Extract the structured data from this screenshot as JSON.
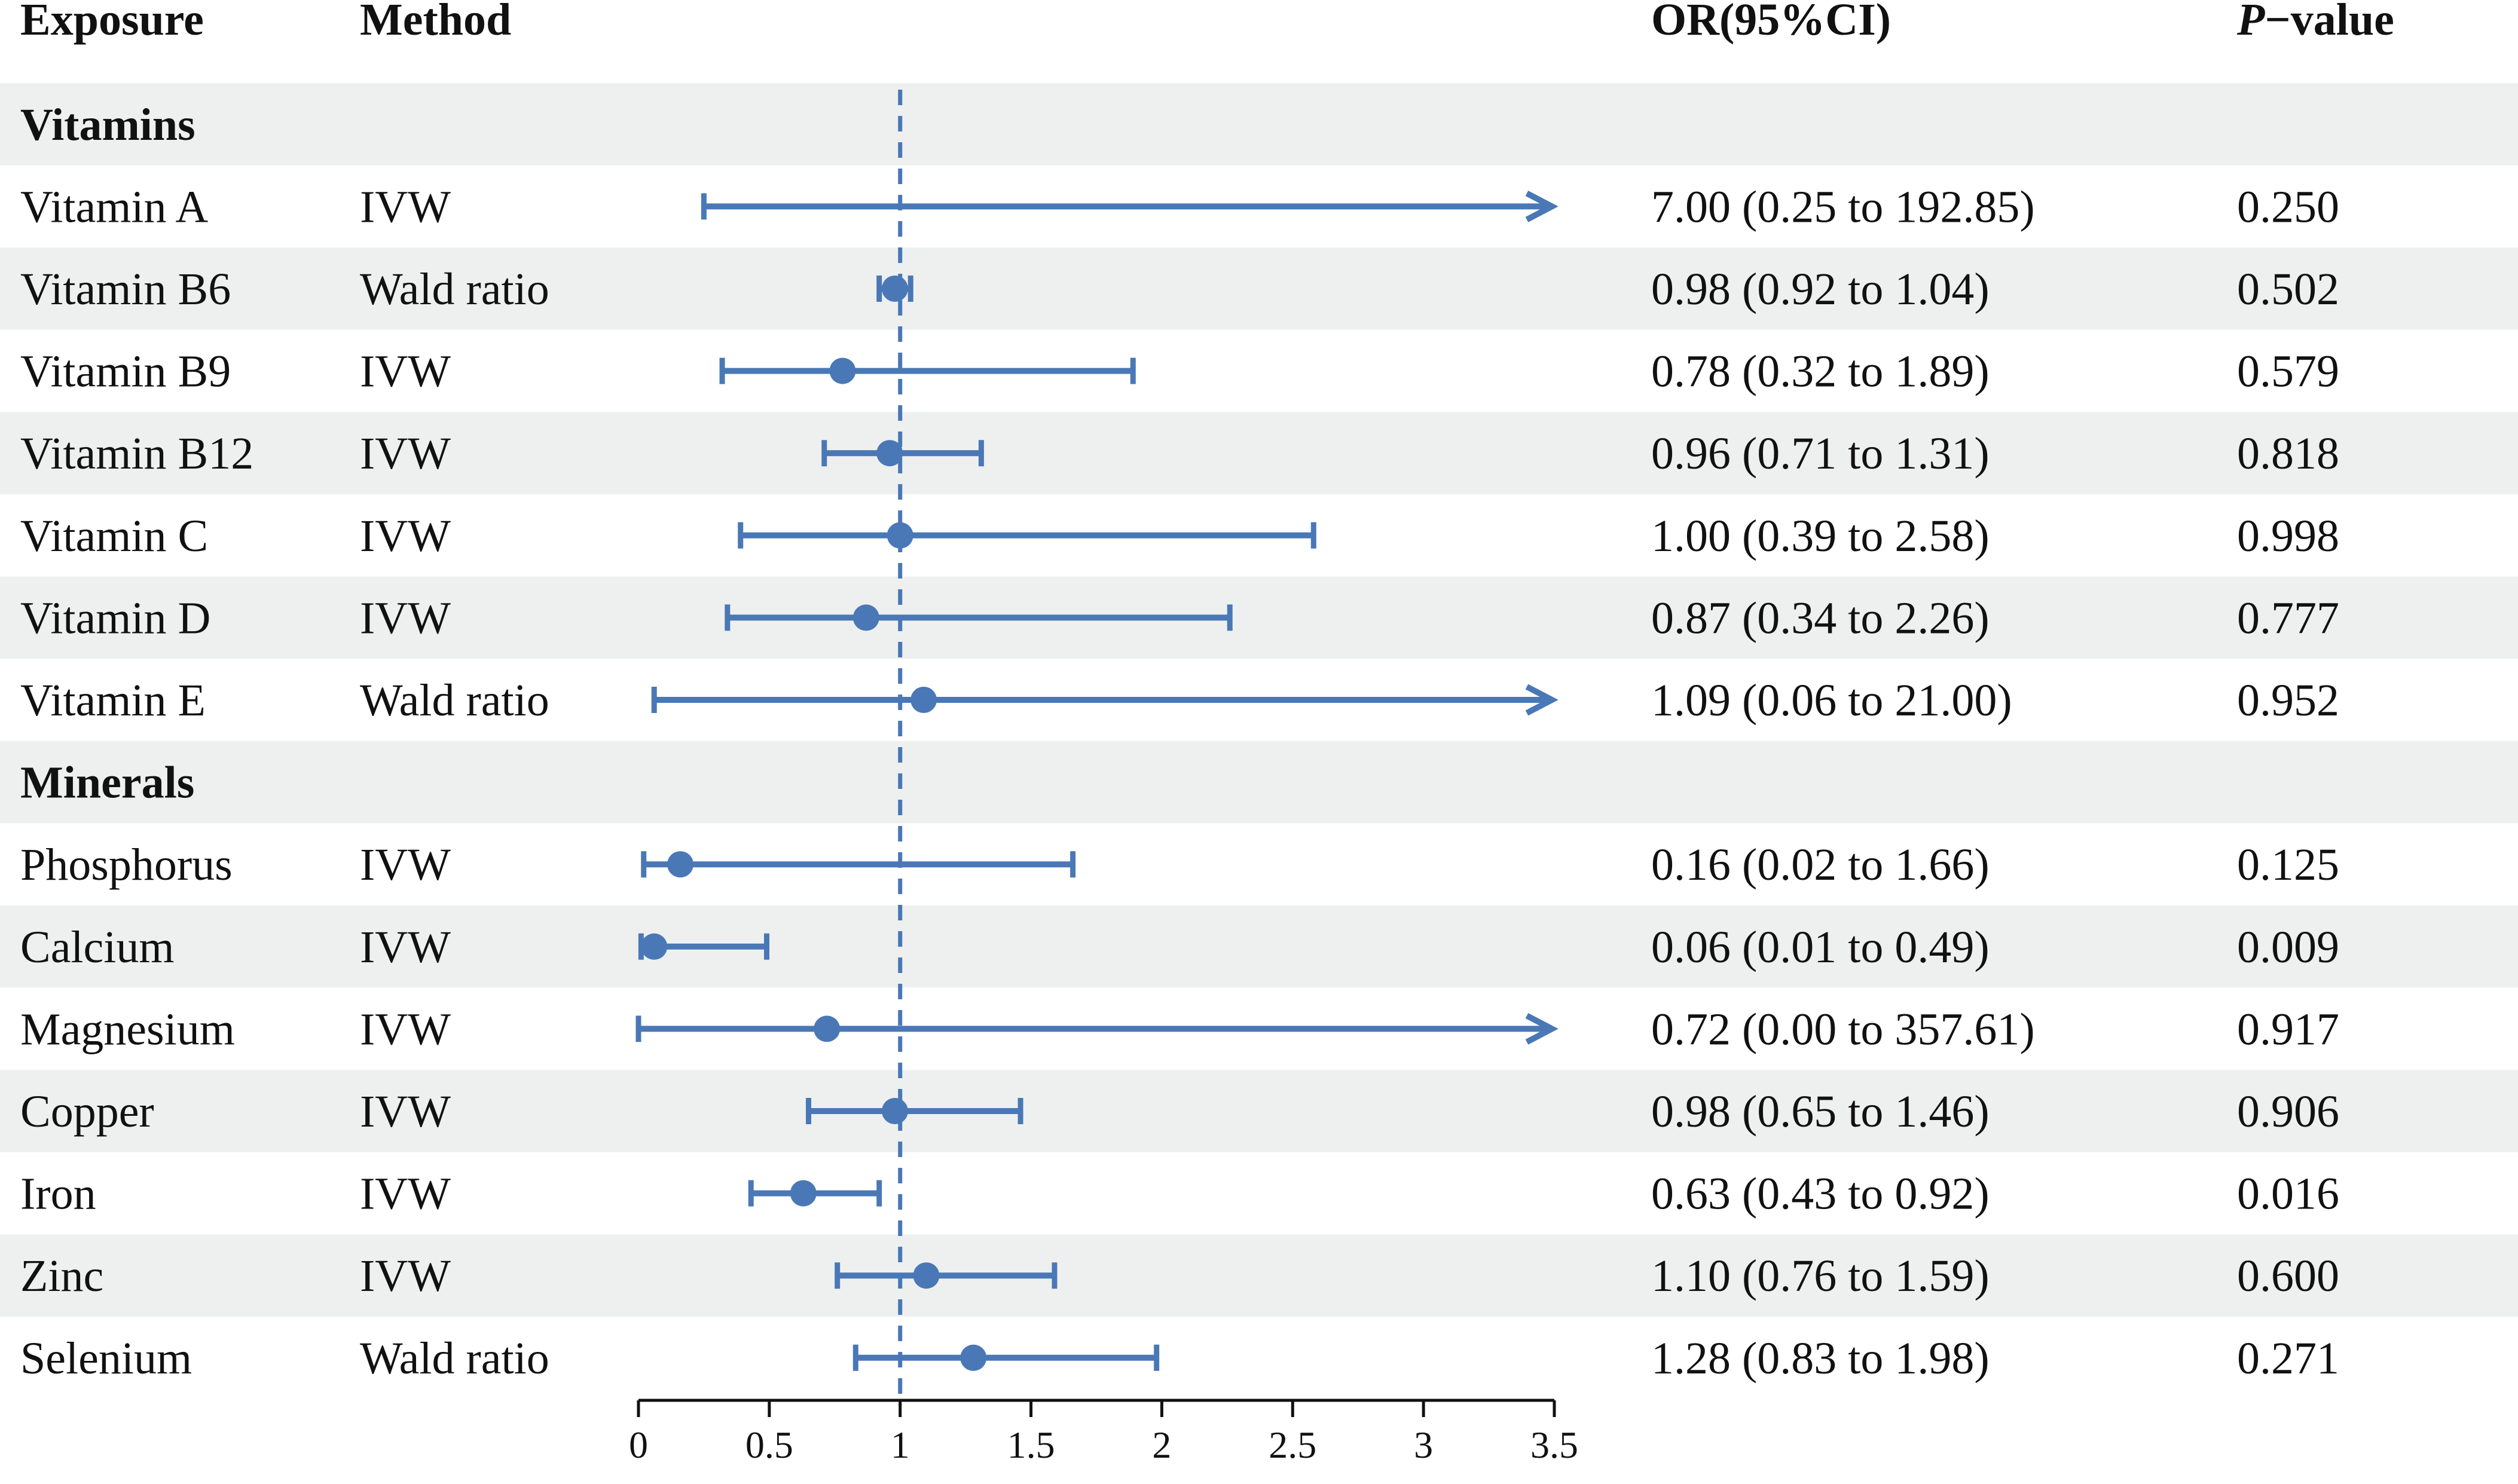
{
  "colors": {
    "accent": "#4a78b6",
    "band": "#eef0ef",
    "text": "#111111"
  },
  "headers": {
    "exposure": "Exposure",
    "method": "Method",
    "or": "OR(95%CI)",
    "p_italic": "P",
    "p_rest": "−value"
  },
  "chart_data": {
    "type": "forest",
    "reference_line": 1,
    "xlim": [
      0,
      3.5
    ],
    "xticks": [
      "0",
      "0.5",
      "1",
      "1.5",
      "2",
      "2.5",
      "3",
      "3.5"
    ],
    "groups": [
      {
        "name": "Vitamins",
        "rows": [
          {
            "exposure": "Vitamin A",
            "method": "IVW",
            "or": 7.0,
            "lo": 0.25,
            "hi": 192.85,
            "or_text": "7.00 (0.25 to 192.85)",
            "p": "0.250"
          },
          {
            "exposure": "Vitamin B6",
            "method": "Wald ratio",
            "or": 0.98,
            "lo": 0.92,
            "hi": 1.04,
            "or_text": "0.98 (0.92 to 1.04)",
            "p": "0.502"
          },
          {
            "exposure": "Vitamin B9",
            "method": "IVW",
            "or": 0.78,
            "lo": 0.32,
            "hi": 1.89,
            "or_text": "0.78 (0.32 to 1.89)",
            "p": "0.579"
          },
          {
            "exposure": "Vitamin B12",
            "method": "IVW",
            "or": 0.96,
            "lo": 0.71,
            "hi": 1.31,
            "or_text": "0.96 (0.71 to 1.31)",
            "p": "0.818"
          },
          {
            "exposure": "Vitamin C",
            "method": "IVW",
            "or": 1.0,
            "lo": 0.39,
            "hi": 2.58,
            "or_text": "1.00 (0.39 to 2.58)",
            "p": "0.998"
          },
          {
            "exposure": "Vitamin D",
            "method": "IVW",
            "or": 0.87,
            "lo": 0.34,
            "hi": 2.26,
            "or_text": "0.87 (0.34 to 2.26)",
            "p": "0.777"
          },
          {
            "exposure": "Vitamin E",
            "method": "Wald ratio",
            "or": 1.09,
            "lo": 0.06,
            "hi": 21.0,
            "or_text": "1.09 (0.06 to 21.00)",
            "p": "0.952"
          }
        ]
      },
      {
        "name": "Minerals",
        "rows": [
          {
            "exposure": "Phosphorus",
            "method": "IVW",
            "or": 0.16,
            "lo": 0.02,
            "hi": 1.66,
            "or_text": "0.16 (0.02 to 1.66)",
            "p": "0.125"
          },
          {
            "exposure": "Calcium",
            "method": "IVW",
            "or": 0.06,
            "lo": 0.01,
            "hi": 0.49,
            "or_text": "0.06 (0.01 to 0.49)",
            "p": "0.009"
          },
          {
            "exposure": "Magnesium",
            "method": "IVW",
            "or": 0.72,
            "lo": 0.0,
            "hi": 357.61,
            "or_text": "0.72 (0.00 to 357.61)",
            "p": "0.917"
          },
          {
            "exposure": "Copper",
            "method": "IVW",
            "or": 0.98,
            "lo": 0.65,
            "hi": 1.46,
            "or_text": "0.98 (0.65 to 1.46)",
            "p": "0.906"
          },
          {
            "exposure": "Iron",
            "method": "IVW",
            "or": 0.63,
            "lo": 0.43,
            "hi": 0.92,
            "or_text": "0.63 (0.43 to 0.92)",
            "p": "0.016"
          },
          {
            "exposure": "Zinc",
            "method": "IVW",
            "or": 1.1,
            "lo": 0.76,
            "hi": 1.59,
            "or_text": "1.10 (0.76 to 1.59)",
            "p": "0.600"
          },
          {
            "exposure": "Selenium",
            "method": "Wald ratio",
            "or": 1.28,
            "lo": 0.83,
            "hi": 1.98,
            "or_text": "1.28 (0.83 to 1.98)",
            "p": "0.271"
          }
        ]
      }
    ]
  }
}
